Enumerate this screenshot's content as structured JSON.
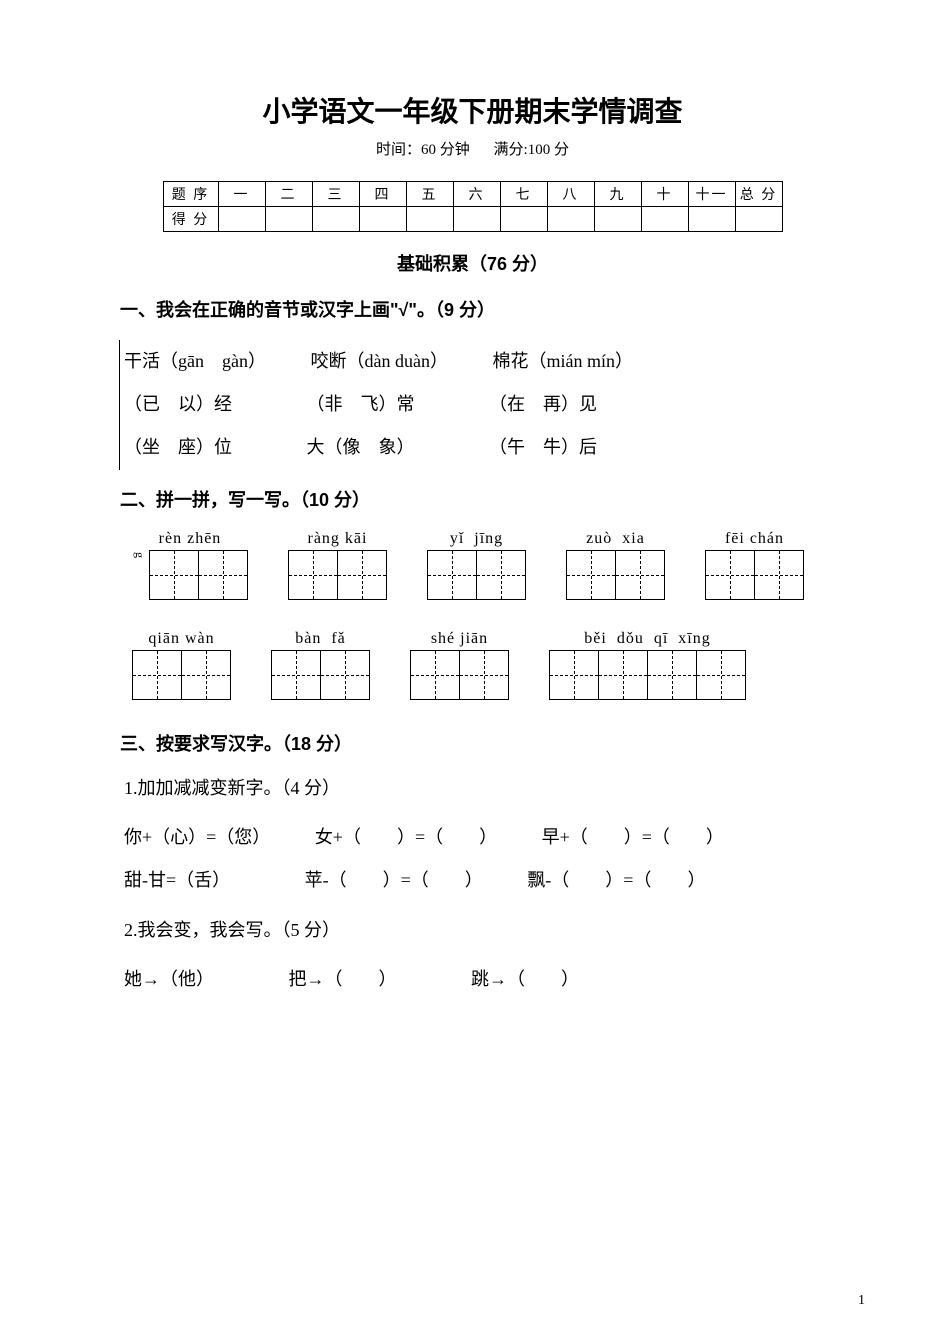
{
  "title": "小学语文一年级下册期末学情调查",
  "subtitle": {
    "time": "时间：60 分钟",
    "full": "满分:100 分"
  },
  "score_table": {
    "row1_label": "题 序",
    "row2_label": "得 分",
    "cols": [
      "一",
      "二",
      "三",
      "四",
      "五",
      "六",
      "七",
      "八",
      "九",
      "十",
      "十一",
      "总 分"
    ]
  },
  "section_heading": "基础积累（76 分）",
  "q1": {
    "title": "一、我会在正确的音节或汉字上画\"√\"。（9 分）",
    "lines": [
      [
        "干活（gān　gàn）",
        "咬断（dàn  duàn）",
        "棉花（mián  mín）"
      ],
      [
        "（已　以）经",
        "（非　飞）常",
        "（在　再）见"
      ],
      [
        "（坐　座）位",
        "大（像　象）",
        "（午　牛）后"
      ]
    ]
  },
  "q2": {
    "title": "二、拼一拼，写一写。（10 分）",
    "row1": [
      {
        "pinyin": "rèn zhēn",
        "cells": 2,
        "side": "g"
      },
      {
        "pinyin": "ràng kāi",
        "cells": 2
      },
      {
        "pinyin": "yǐ  jīng",
        "cells": 2
      },
      {
        "pinyin": "zuò  xia",
        "cells": 2
      },
      {
        "pinyin": "fēi chán",
        "cells": 2
      }
    ],
    "row2": [
      {
        "pinyin": "qiān wàn",
        "cells": 2
      },
      {
        "pinyin": "bàn  fǎ",
        "cells": 2
      },
      {
        "pinyin": "shé jiān",
        "cells": 2
      },
      {
        "pinyin": "běi  dǒu  qī  xīng",
        "cells": 4
      }
    ]
  },
  "q3": {
    "title": "三、按要求写汉字。（18 分）",
    "s1": {
      "title": "1.加加减减变新字。（4 分）",
      "lines": [
        [
          "你+（心）=（您）",
          "女+（　　）=（　　）",
          "早+（　　）=（　　）"
        ],
        [
          "甜-甘=（舌）",
          "苹-（　　）=（　　）",
          "飘-（　　）=（　　）"
        ]
      ]
    },
    "s2": {
      "title": "2.我会变，我会写。（5 分）",
      "line": [
        "她→（他）",
        "把→（　　）",
        "跳→（　　）"
      ]
    }
  },
  "page_num": "1",
  "colors": {
    "text": "#000000",
    "bg": "#ffffff"
  }
}
